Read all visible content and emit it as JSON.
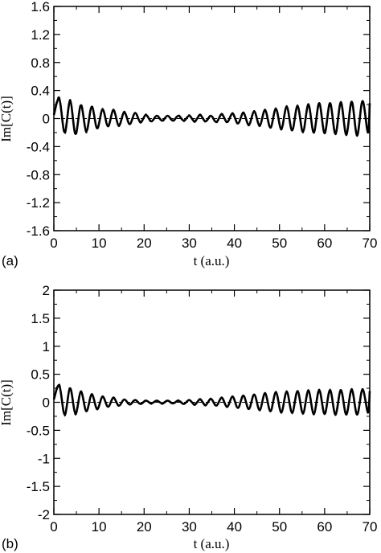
{
  "chart_data": [
    {
      "type": "line",
      "panel_label": "(a)",
      "xlabel": "t (a.u.)",
      "ylabel": "Im[C(t)]",
      "xlim": [
        0,
        70
      ],
      "ylim": [
        -1.6,
        1.6
      ],
      "xticks": [
        "0",
        "10",
        "20",
        "30",
        "40",
        "50",
        "60",
        "70"
      ],
      "yticks": [
        "1.6",
        "1.2",
        "0.8",
        "0.4",
        "0",
        "-0.4",
        "-0.8",
        "-1.2",
        "-1.6"
      ],
      "series": [
        {
          "style": "solid",
          "x": [
            0,
            1.2,
            2.4,
            3.6,
            4.8,
            6,
            7.2,
            8.4,
            9.6,
            10.8,
            12,
            13.2,
            14.4,
            15.6,
            16.8,
            18,
            19.2,
            20.4,
            21.6,
            22.8,
            24,
            25.2,
            26.4,
            27.6,
            28.8,
            30,
            31.2,
            32.4,
            33.6,
            34.8,
            36,
            37.2,
            38.4,
            39.6,
            40.8,
            42,
            43.2,
            44.4,
            45.6,
            46.8,
            48,
            49.2,
            50.4,
            51.6,
            52.8,
            54,
            55.2,
            56.4,
            57.6,
            58.8,
            60,
            61.2,
            62.4,
            63.6,
            64.8,
            66,
            67.2,
            68.4,
            69.6,
            70
          ],
          "y": [
            0.05,
            0.28,
            -0.2,
            0.25,
            -0.22,
            0.19,
            -0.18,
            0.17,
            -0.14,
            0.13,
            -0.11,
            0.12,
            -0.1,
            0.09,
            -0.08,
            0.08,
            -0.05,
            0.05,
            -0.04,
            0.04,
            -0.03,
            0.04,
            -0.03,
            0.04,
            -0.03,
            0.04,
            -0.04,
            0.05,
            -0.04,
            0.04,
            -0.05,
            0.06,
            -0.05,
            0.07,
            -0.07,
            0.08,
            -0.09,
            0.1,
            -0.1,
            0.12,
            -0.13,
            0.14,
            -0.15,
            0.17,
            -0.17,
            0.18,
            -0.19,
            0.2,
            -0.2,
            0.22,
            -0.21,
            0.22,
            -0.22,
            0.23,
            -0.23,
            0.24,
            -0.24,
            0.25,
            -0.2,
            0.22
          ]
        },
        {
          "style": "dashed",
          "x": [
            0,
            1.2,
            2.4,
            3.6,
            4.8,
            6,
            7.2,
            8.4,
            9.6,
            10.8,
            12,
            13.2,
            14.4,
            15.6,
            16.8,
            18,
            19.2,
            20.4,
            21.6,
            22.8,
            24,
            25.2,
            26.4,
            27.6,
            28.8,
            30,
            31.2,
            32.4,
            33.6,
            34.8,
            36,
            37.2,
            38.4,
            39.6,
            40.8,
            42,
            43.2,
            44.4,
            45.6,
            46.8,
            48,
            49.2,
            50.4,
            51.6,
            52.8,
            54,
            55.2,
            56.4,
            57.6,
            58.8,
            60,
            61.2,
            62.4,
            63.6,
            64.8,
            66,
            67.2,
            68.4,
            69.6,
            70
          ],
          "y": [
            0.06,
            0.3,
            -0.22,
            0.27,
            -0.24,
            0.21,
            -0.2,
            0.18,
            -0.15,
            0.14,
            -0.12,
            0.13,
            -0.11,
            0.1,
            -0.08,
            0.08,
            -0.06,
            0.06,
            -0.05,
            0.05,
            -0.04,
            0.04,
            -0.04,
            0.05,
            -0.04,
            0.05,
            -0.05,
            0.06,
            -0.05,
            0.05,
            -0.06,
            0.07,
            -0.06,
            0.08,
            -0.08,
            0.09,
            -0.1,
            0.11,
            -0.11,
            0.13,
            -0.14,
            0.15,
            -0.16,
            0.18,
            -0.18,
            0.19,
            -0.2,
            0.21,
            -0.21,
            0.23,
            -0.22,
            0.23,
            -0.23,
            0.24,
            -0.24,
            0.25,
            -0.25,
            0.26,
            -0.21,
            0.23
          ]
        }
      ]
    },
    {
      "type": "line",
      "panel_label": "(b)",
      "xlabel": "t (a.u.)",
      "ylabel": "Im[C(t)]",
      "xlim": [
        0,
        70
      ],
      "ylim": [
        -2,
        2
      ],
      "xticks": [
        "0",
        "10",
        "20",
        "30",
        "40",
        "50",
        "60",
        "70"
      ],
      "yticks": [
        "2",
        "1.5",
        "1",
        "0.5",
        "0",
        "-0.5",
        "-1",
        "-1.5",
        "-2"
      ],
      "series": [
        {
          "style": "solid",
          "x": [
            0,
            1.2,
            2.4,
            3.6,
            4.8,
            6,
            7.2,
            8.4,
            9.6,
            10.8,
            12,
            13.2,
            14.4,
            15.6,
            16.8,
            18,
            19.2,
            20.4,
            21.6,
            22.8,
            24,
            25.2,
            26.4,
            27.6,
            28.8,
            30,
            31.2,
            32.4,
            33.6,
            34.8,
            36,
            37.2,
            38.4,
            39.6,
            40.8,
            42,
            43.2,
            44.4,
            45.6,
            46.8,
            48,
            49.2,
            50.4,
            51.6,
            52.8,
            54,
            55.2,
            56.4,
            57.6,
            58.8,
            60,
            61.2,
            62.4,
            63.6,
            64.8,
            66,
            67.2,
            68.4,
            69.6,
            70
          ],
          "y": [
            0.05,
            0.3,
            -0.22,
            0.25,
            -0.2,
            0.19,
            -0.16,
            0.14,
            -0.12,
            0.1,
            -0.08,
            0.08,
            -0.06,
            0.05,
            -0.04,
            0.04,
            -0.03,
            0.03,
            -0.02,
            0.03,
            -0.02,
            0.03,
            -0.02,
            0.03,
            -0.03,
            0.04,
            -0.04,
            0.05,
            -0.05,
            0.06,
            -0.06,
            0.08,
            -0.08,
            0.1,
            -0.1,
            0.12,
            -0.12,
            0.14,
            -0.14,
            0.16,
            -0.16,
            0.18,
            -0.18,
            0.19,
            -0.19,
            0.2,
            -0.2,
            0.21,
            -0.21,
            0.22,
            -0.21,
            0.22,
            -0.22,
            0.22,
            -0.22,
            0.23,
            -0.22,
            0.23,
            -0.18,
            0.2
          ]
        },
        {
          "style": "dashed",
          "x": [
            0,
            1.2,
            2.4,
            3.6,
            4.8,
            6,
            7.2,
            8.4,
            9.6,
            10.8,
            12,
            13.2,
            14.4,
            15.6,
            16.8,
            18,
            19.2,
            20.4,
            21.6,
            22.8,
            24,
            25.2,
            26.4,
            27.6,
            28.8,
            30,
            31.2,
            32.4,
            33.6,
            34.8,
            36,
            37.2,
            38.4,
            39.6,
            40.8,
            42,
            43.2,
            44.4,
            45.6,
            46.8,
            48,
            49.2,
            50.4,
            51.6,
            52.8,
            54,
            55.2,
            56.4,
            57.6,
            58.8,
            60,
            61.2,
            62.4,
            63.6,
            64.8,
            66,
            67.2,
            68.4,
            69.6,
            70
          ],
          "y": [
            0.06,
            0.32,
            -0.24,
            0.27,
            -0.22,
            0.2,
            -0.17,
            0.15,
            -0.13,
            0.11,
            -0.09,
            0.09,
            -0.07,
            0.06,
            -0.05,
            0.05,
            -0.04,
            0.04,
            -0.03,
            0.03,
            -0.03,
            0.03,
            -0.03,
            0.04,
            -0.03,
            0.04,
            -0.05,
            0.06,
            -0.06,
            0.07,
            -0.07,
            0.09,
            -0.09,
            0.11,
            -0.11,
            0.13,
            -0.13,
            0.15,
            -0.15,
            0.17,
            -0.17,
            0.19,
            -0.19,
            0.2,
            -0.2,
            0.21,
            -0.21,
            0.22,
            -0.22,
            0.23,
            -0.22,
            0.23,
            -0.23,
            0.23,
            -0.23,
            0.24,
            -0.23,
            0.24,
            -0.19,
            0.21
          ]
        }
      ]
    }
  ]
}
